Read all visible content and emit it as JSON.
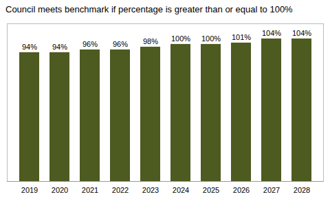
{
  "chart_data": {
    "type": "bar",
    "title": "Council meets benchmark if percentage is greater than or equal to 100%",
    "categories": [
      "2019",
      "2020",
      "2021",
      "2022",
      "2023",
      "2024",
      "2025",
      "2026",
      "2027",
      "2028"
    ],
    "values": [
      94,
      94,
      96,
      96,
      98,
      100,
      100,
      101,
      104,
      104
    ],
    "value_labels": [
      "94%",
      "94%",
      "96%",
      "96%",
      "98%",
      "100%",
      "100%",
      "101%",
      "104%",
      "104%"
    ],
    "color": "#4d5a20",
    "ylim": [
      0,
      115
    ],
    "data_labels": true,
    "tick_labels": "x",
    "grid": false
  }
}
